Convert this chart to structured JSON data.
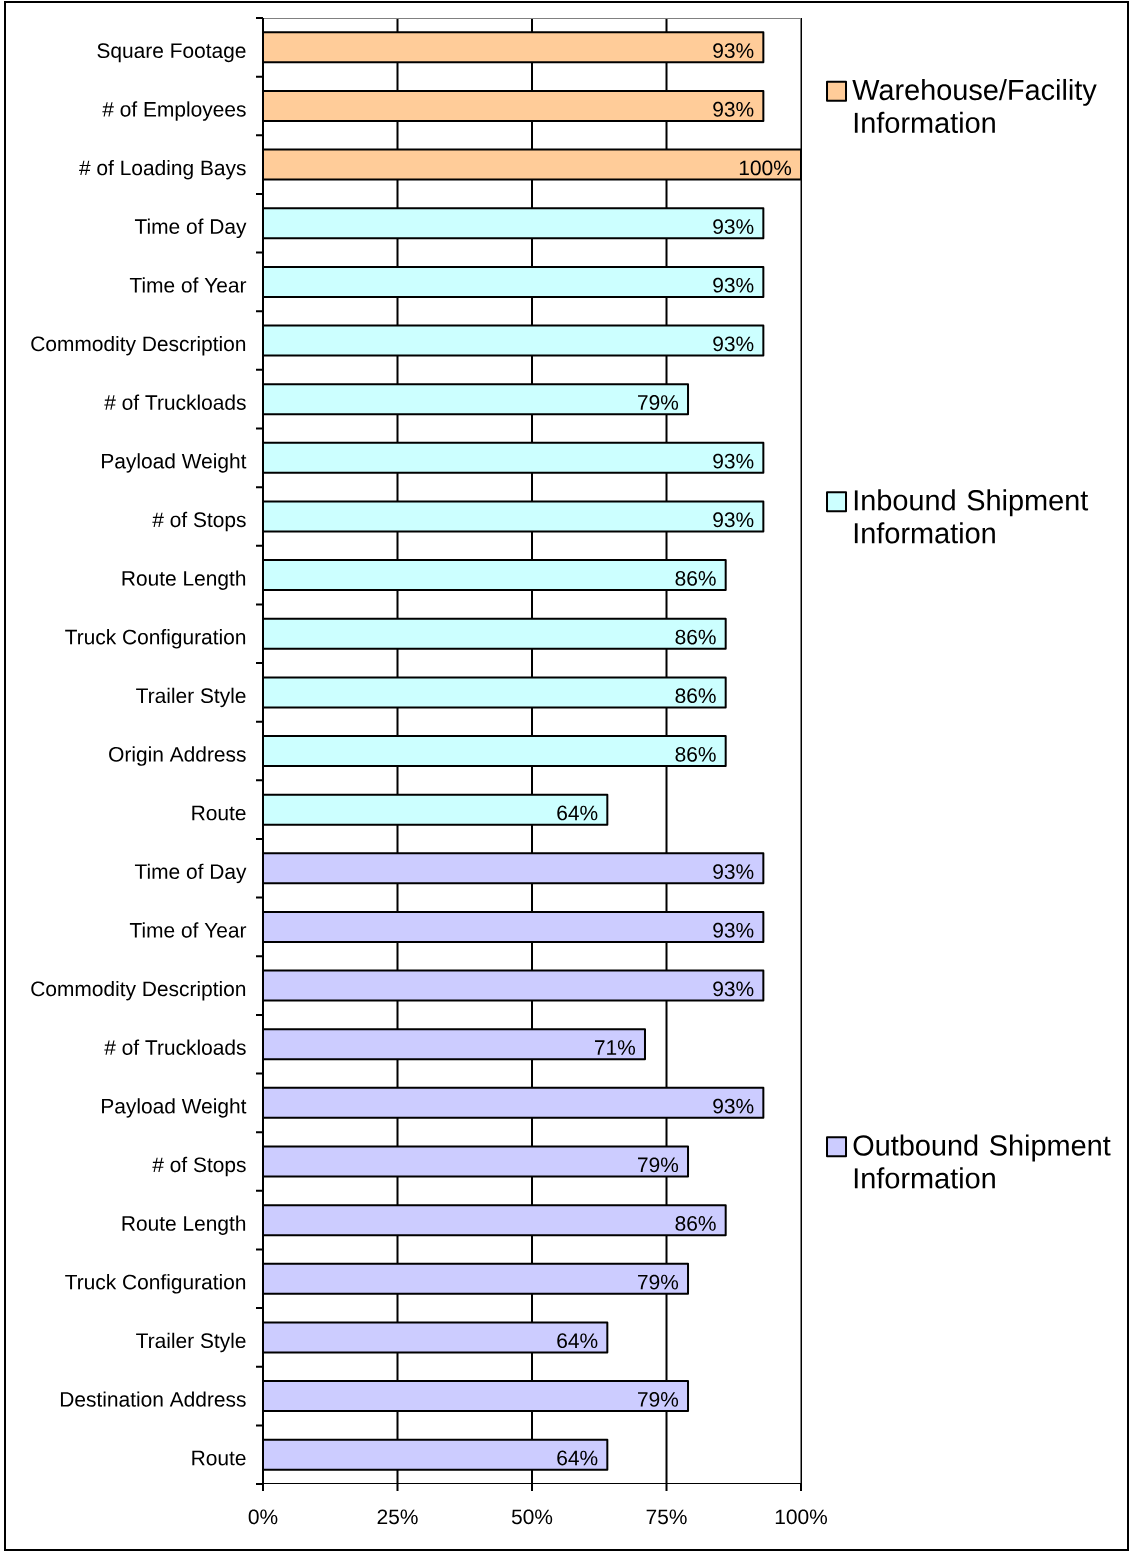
{
  "chart_data": {
    "type": "bar",
    "orientation": "horizontal",
    "categories": [
      "Square Footage",
      "# of Employees",
      "# of Loading Bays",
      "Time of Day",
      "Time of Year",
      "Commodity Description",
      "# of Truckloads",
      "Payload Weight",
      "# of Stops",
      "Route Length",
      "Truck Configuration",
      "Trailer Style",
      "Origin Address",
      "Route",
      "Time of Day",
      "Time of Year",
      "Commodity Description",
      "# of Truckloads",
      "Payload Weight",
      "# of Stops",
      "Route Length",
      "Truck Configuration",
      "Trailer Style",
      "Destination Address",
      "Route"
    ],
    "series": [
      {
        "name": "Warehouse/Facility Information",
        "color": "#ffcc99",
        "values": [
          93,
          93,
          100,
          null,
          null,
          null,
          null,
          null,
          null,
          null,
          null,
          null,
          null,
          null,
          null,
          null,
          null,
          null,
          null,
          null,
          null,
          null,
          null,
          null,
          null
        ],
        "value_labels": [
          "93%",
          "93%",
          "100%",
          null,
          null,
          null,
          null,
          null,
          null,
          null,
          null,
          null,
          null,
          null,
          null,
          null,
          null,
          null,
          null,
          null,
          null,
          null,
          null,
          null,
          null
        ]
      },
      {
        "name": "Inbound Shipment Information",
        "color": "#ccffff",
        "values": [
          null,
          null,
          null,
          93,
          93,
          93,
          79,
          93,
          93,
          86,
          86,
          86,
          86,
          64,
          null,
          null,
          null,
          null,
          null,
          null,
          null,
          null,
          null,
          null,
          null
        ],
        "value_labels": [
          null,
          null,
          null,
          "93%",
          "93%",
          "93%",
          "79%",
          "93%",
          "93%",
          "86%",
          "86%",
          "86%",
          "86%",
          "64%",
          null,
          null,
          null,
          null,
          null,
          null,
          null,
          null,
          null,
          null,
          null
        ]
      },
      {
        "name": "Outbound Shipment Information",
        "color": "#ccccff",
        "values": [
          null,
          null,
          null,
          null,
          null,
          null,
          null,
          null,
          null,
          null,
          null,
          null,
          null,
          null,
          93,
          93,
          93,
          71,
          93,
          79,
          86,
          79,
          64,
          79,
          64
        ],
        "value_labels": [
          null,
          null,
          null,
          null,
          null,
          null,
          null,
          null,
          null,
          null,
          null,
          null,
          null,
          null,
          "93%",
          "93%",
          "93%",
          "71%",
          "93%",
          "79%",
          "86%",
          "79%",
          "64%",
          "79%",
          "64%"
        ]
      }
    ],
    "xlim": [
      0,
      100
    ],
    "xticks": [
      {
        "value": 0,
        "label": "0%"
      },
      {
        "value": 25,
        "label": "25%"
      },
      {
        "value": 50,
        "label": "50%"
      },
      {
        "value": 75,
        "label": "75%"
      },
      {
        "value": 100,
        "label": "100%"
      }
    ],
    "grid": "x",
    "legend": "right"
  }
}
